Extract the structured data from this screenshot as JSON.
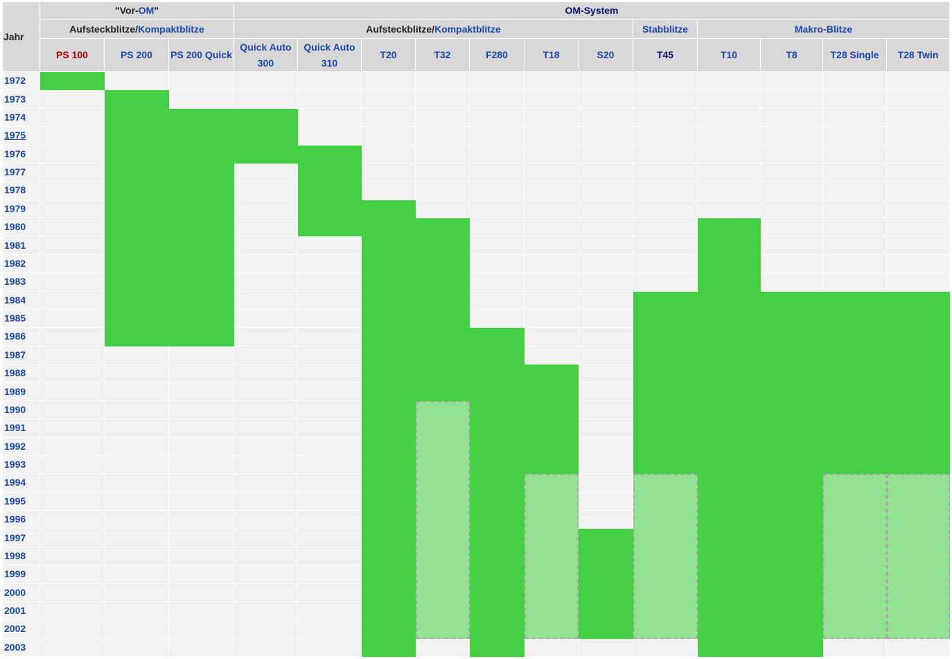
{
  "table": {
    "first_column": "Jahr",
    "years": [
      1972,
      1973,
      1974,
      1975,
      1976,
      1977,
      1978,
      1979,
      1980,
      1981,
      1982,
      1983,
      1984,
      1985,
      1986,
      1987,
      1988,
      1989,
      1990,
      1991,
      1992,
      1993,
      1994,
      1995,
      1996,
      1997,
      1998,
      1999,
      2000,
      2001,
      2002,
      2003
    ],
    "groups": [
      {
        "title": [
          "\"Vor-",
          "OM",
          "\""
        ],
        "subgroups": [
          {
            "title": [
              "Aufsteckblitze",
              "/",
              "Kompaktblitze"
            ],
            "columns": [
              {
                "name": "PS 100",
                "produced": [
                  1972,
                  1972
                ]
              },
              {
                "name": "PS 200",
                "produced": [
                  1973,
                  1986
                ]
              },
              {
                "name": "PS 200 Quick",
                "produced": [
                  1974,
                  1986
                ]
              }
            ]
          }
        ]
      },
      {
        "title": [
          "OM-System"
        ],
        "subgroups": [
          {
            "title": [
              "Aufsteckblitze",
              "/",
              "Kompaktblitze"
            ],
            "columns": [
              {
                "name": "Quick Auto 300",
                "produced": [
                  1974,
                  1976
                ]
              },
              {
                "name": "Quick Auto 310",
                "produced": [
                  1976,
                  1980
                ]
              },
              {
                "name": "T20",
                "produced": [
                  1979,
                  2003
                ]
              },
              {
                "name": "T32",
                "produced": [
                  1980,
                  1989
                ],
                "sold": [
                  1990,
                  2002
                ]
              },
              {
                "name": "F280",
                "produced": [
                  1986,
                  2003
                ]
              },
              {
                "name": "T18",
                "produced": [
                  1988,
                  1993
                ],
                "sold": [
                  1994,
                  2002
                ]
              },
              {
                "name": "S20",
                "produced": [
                  1997,
                  2002
                ]
              }
            ]
          },
          {
            "title": [
              "Stabblitze"
            ],
            "columns": [
              {
                "name": "T45",
                "produced": [
                  1984,
                  1993
                ],
                "sold": [
                  1994,
                  2002
                ]
              }
            ]
          },
          {
            "title": [
              "Makro-Blitze"
            ],
            "columns": [
              {
                "name": "T10",
                "produced": [
                  1980,
                  2003
                ]
              },
              {
                "name": "T8",
                "produced": [
                  1984,
                  2003
                ]
              },
              {
                "name": "T28 Single",
                "produced": [
                  1984,
                  1993
                ],
                "sold": [
                  1994,
                  2002
                ]
              },
              {
                "name": "T28 Twin",
                "produced": [
                  1984,
                  1993
                ],
                "sold": [
                  1994,
                  2002
                ]
              }
            ]
          }
        ]
      }
    ]
  }
}
